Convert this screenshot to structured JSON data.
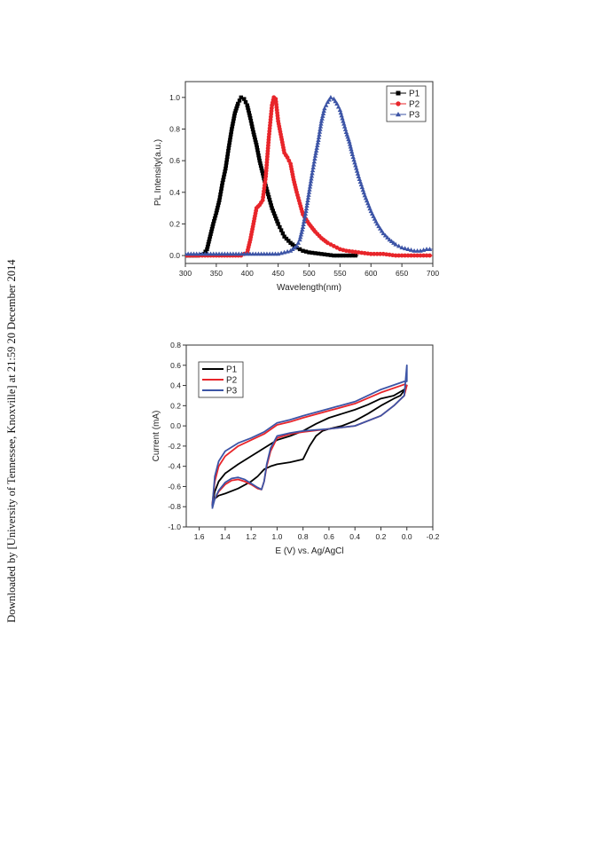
{
  "side_note": "Downloaded by [University of Tennessee, Knoxville] at 21:59 20 December 2014",
  "colors": {
    "P1": "#000000",
    "P2": "#e8252a",
    "P3": "#3c54a6"
  },
  "chart_data": [
    {
      "type": "scatter",
      "title": "",
      "xlabel": "Wavelength(nm)",
      "ylabel": "PL Intensity(a.u.)",
      "xlim": [
        300,
        700
      ],
      "ylim": [
        -0.05,
        1.1
      ],
      "xticks": [
        "300",
        "350",
        "400",
        "450",
        "500",
        "550",
        "600",
        "650",
        "700"
      ],
      "yticks": [
        "0.0",
        "0.2",
        "0.4",
        "0.6",
        "0.8",
        "1.0"
      ],
      "legend": {
        "placement": "top-right"
      },
      "series": [
        {
          "name": "P1",
          "marker": "square",
          "color": "#000000",
          "x": [
            300,
            320,
            330,
            335,
            340,
            345,
            350,
            355,
            360,
            365,
            370,
            375,
            380,
            385,
            390,
            395,
            400,
            405,
            410,
            415,
            420,
            425,
            430,
            435,
            440,
            445,
            450,
            455,
            460,
            470,
            480,
            490,
            500,
            520,
            540,
            560,
            580
          ],
          "y": [
            0.0,
            0.0,
            0.01,
            0.04,
            0.12,
            0.2,
            0.27,
            0.35,
            0.46,
            0.55,
            0.68,
            0.8,
            0.9,
            0.96,
            1.0,
            0.99,
            0.95,
            0.87,
            0.78,
            0.7,
            0.6,
            0.52,
            0.44,
            0.37,
            0.3,
            0.25,
            0.2,
            0.16,
            0.12,
            0.08,
            0.05,
            0.03,
            0.02,
            0.01,
            0.0,
            0.0,
            0.0
          ]
        },
        {
          "name": "P2",
          "marker": "circle",
          "color": "#e8252a",
          "x": [
            300,
            350,
            390,
            400,
            405,
            410,
            415,
            420,
            425,
            430,
            435,
            440,
            443,
            446,
            450,
            455,
            460,
            465,
            470,
            475,
            480,
            485,
            490,
            500,
            510,
            520,
            530,
            540,
            550,
            560,
            580,
            600,
            620,
            640,
            660,
            680,
            700
          ],
          "y": [
            0.0,
            0.0,
            0.0,
            0.02,
            0.1,
            0.2,
            0.3,
            0.32,
            0.35,
            0.5,
            0.75,
            0.95,
            1.0,
            0.99,
            0.85,
            0.75,
            0.65,
            0.62,
            0.58,
            0.48,
            0.4,
            0.33,
            0.26,
            0.2,
            0.15,
            0.11,
            0.08,
            0.06,
            0.04,
            0.03,
            0.02,
            0.01,
            0.01,
            0.0,
            0.0,
            0.0,
            0.0
          ]
        },
        {
          "name": "P3",
          "marker": "triangle",
          "color": "#3c54a6",
          "x": [
            300,
            350,
            400,
            450,
            460,
            470,
            480,
            485,
            490,
            495,
            500,
            505,
            510,
            515,
            520,
            525,
            530,
            535,
            540,
            545,
            550,
            555,
            560,
            565,
            570,
            575,
            580,
            590,
            600,
            610,
            620,
            630,
            640,
            650,
            660,
            670,
            680,
            690,
            700
          ],
          "y": [
            0.01,
            0.01,
            0.01,
            0.01,
            0.02,
            0.03,
            0.06,
            0.1,
            0.18,
            0.28,
            0.4,
            0.52,
            0.63,
            0.73,
            0.85,
            0.93,
            0.97,
            1.0,
            0.99,
            0.96,
            0.92,
            0.85,
            0.78,
            0.72,
            0.64,
            0.57,
            0.5,
            0.38,
            0.28,
            0.2,
            0.14,
            0.1,
            0.07,
            0.05,
            0.04,
            0.03,
            0.03,
            0.04,
            0.04
          ]
        }
      ]
    },
    {
      "type": "line",
      "title": "",
      "xlabel": "E (V) vs. Ag/AgCl",
      "ylabel": "Current (mA)",
      "xlim": [
        1.7,
        -0.2
      ],
      "ylim": [
        -1.0,
        0.8
      ],
      "xticks": [
        "1.6",
        "1.4",
        "1.2",
        "1.0",
        "0.8",
        "0.6",
        "0.4",
        "0.2",
        "0.0",
        "-0.2"
      ],
      "yticks": [
        "-1.0",
        "-0.8",
        "-0.6",
        "-0.4",
        "-0.2",
        "0.0",
        "0.2",
        "0.4",
        "0.6",
        "0.8"
      ],
      "legend": {
        "placement": "top-left"
      },
      "series": [
        {
          "name": "P1",
          "color": "#000000",
          "x": [
            1.5,
            1.48,
            1.45,
            1.4,
            1.3,
            1.2,
            1.15,
            1.1,
            1.05,
            1.0,
            0.9,
            0.8,
            0.75,
            0.7,
            0.65,
            0.6,
            0.5,
            0.4,
            0.3,
            0.2,
            0.1,
            0.05,
            0.02,
            0.0,
            0.02,
            0.1,
            0.2,
            0.3,
            0.4,
            0.5,
            0.6,
            0.7,
            0.8,
            0.9,
            1.0,
            1.1,
            1.2,
            1.3,
            1.4,
            1.45,
            1.48,
            1.5
          ],
          "y": [
            -0.8,
            -0.72,
            -0.69,
            -0.67,
            -0.62,
            -0.55,
            -0.5,
            -0.43,
            -0.4,
            -0.38,
            -0.36,
            -0.33,
            -0.2,
            -0.1,
            -0.05,
            -0.03,
            0.0,
            0.05,
            0.12,
            0.2,
            0.27,
            0.3,
            0.35,
            0.4,
            0.36,
            0.3,
            0.27,
            0.21,
            0.16,
            0.12,
            0.08,
            0.02,
            -0.05,
            -0.1,
            -0.14,
            -0.22,
            -0.3,
            -0.38,
            -0.47,
            -0.55,
            -0.65,
            -0.78
          ]
        },
        {
          "name": "P2",
          "color": "#e8252a",
          "x": [
            1.5,
            1.48,
            1.45,
            1.4,
            1.35,
            1.3,
            1.25,
            1.2,
            1.15,
            1.12,
            1.1,
            1.08,
            1.05,
            1.0,
            0.9,
            0.8,
            0.6,
            0.4,
            0.2,
            0.1,
            0.02,
            0.0,
            0.02,
            0.2,
            0.4,
            0.6,
            0.8,
            0.9,
            1.0,
            1.1,
            1.2,
            1.3,
            1.4,
            1.45,
            1.48,
            1.5
          ],
          "y": [
            -0.8,
            -0.72,
            -0.65,
            -0.58,
            -0.54,
            -0.53,
            -0.55,
            -0.58,
            -0.62,
            -0.63,
            -0.55,
            -0.4,
            -0.25,
            -0.12,
            -0.08,
            -0.06,
            -0.03,
            0.0,
            0.1,
            0.2,
            0.3,
            0.4,
            0.41,
            0.33,
            0.22,
            0.15,
            0.08,
            0.04,
            0.01,
            -0.08,
            -0.14,
            -0.2,
            -0.3,
            -0.4,
            -0.55,
            -0.78
          ]
        },
        {
          "name": "P3",
          "color": "#3c54a6",
          "x": [
            1.5,
            1.48,
            1.45,
            1.4,
            1.35,
            1.3,
            1.25,
            1.2,
            1.15,
            1.12,
            1.1,
            1.08,
            1.05,
            1.0,
            0.9,
            0.8,
            0.6,
            0.4,
            0.2,
            0.1,
            0.02,
            0.0,
            0.0,
            0.02,
            0.2,
            0.4,
            0.6,
            0.8,
            0.9,
            1.0,
            1.1,
            1.2,
            1.3,
            1.4,
            1.45,
            1.48,
            1.5
          ],
          "y": [
            -0.82,
            -0.72,
            -0.64,
            -0.56,
            -0.52,
            -0.51,
            -0.53,
            -0.57,
            -0.61,
            -0.63,
            -0.55,
            -0.38,
            -0.22,
            -0.1,
            -0.07,
            -0.05,
            -0.03,
            0.0,
            0.1,
            0.2,
            0.3,
            0.6,
            0.44,
            0.44,
            0.36,
            0.24,
            0.17,
            0.1,
            0.06,
            0.03,
            -0.06,
            -0.12,
            -0.17,
            -0.25,
            -0.35,
            -0.5,
            -0.8
          ]
        }
      ]
    }
  ]
}
